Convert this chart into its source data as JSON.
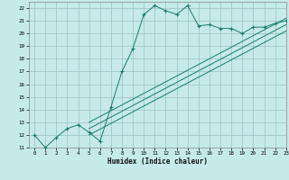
{
  "xlabel": "Humidex (Indice chaleur)",
  "bg_color": "#c6eaea",
  "grid_color": "#a0c8c8",
  "line_color": "#1a7a6a",
  "spine_color": "#888888",
  "xlim": [
    -0.5,
    23
  ],
  "ylim": [
    11,
    22.5
  ],
  "xticks": [
    0,
    1,
    2,
    3,
    4,
    5,
    6,
    7,
    8,
    9,
    10,
    11,
    12,
    13,
    14,
    15,
    16,
    17,
    18,
    19,
    20,
    21,
    22,
    23
  ],
  "yticks": [
    11,
    12,
    13,
    14,
    15,
    16,
    17,
    18,
    19,
    20,
    21,
    22
  ],
  "main_x": [
    0,
    1,
    2,
    3,
    4,
    5,
    6,
    7,
    8,
    9,
    10,
    11,
    12,
    13,
    14,
    15,
    16,
    17,
    18,
    19,
    20,
    21,
    22,
    23
  ],
  "main_y": [
    12,
    11,
    11.8,
    12.5,
    12.8,
    12.2,
    11.5,
    14.2,
    17.0,
    18.8,
    21.5,
    22.2,
    21.8,
    21.5,
    22.2,
    20.6,
    20.7,
    20.4,
    20.4,
    20.0,
    20.5,
    20.5,
    20.8,
    21.0
  ],
  "ref_line1_x": [
    5,
    23
  ],
  "ref_line1_y": [
    12.0,
    20.2
  ],
  "ref_line2_x": [
    5,
    23
  ],
  "ref_line2_y": [
    12.5,
    20.7
  ],
  "ref_line3_x": [
    5,
    23
  ],
  "ref_line3_y": [
    13.0,
    21.2
  ]
}
